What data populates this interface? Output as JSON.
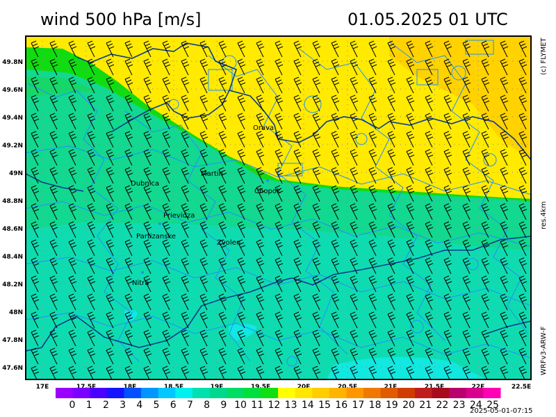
{
  "header": {
    "title": "wind 500 hPa [m/s]",
    "datetime": "01.05.2025   01 UTC"
  },
  "side_labels": {
    "copyright": "(c) FLYMET",
    "resolution": "res.4km",
    "model": "WRFv3-ARW-F"
  },
  "timestamp": "2025-05-01-07:15",
  "map": {
    "lat_ticks": [
      "49.8N",
      "49.6N",
      "49.4N",
      "49.2N",
      "49N",
      "48.8N",
      "48.6N",
      "48.4N",
      "48.2N",
      "48N",
      "47.8N",
      "47.6N"
    ],
    "lon_ticks": [
      "17E",
      "17.5E",
      "18E",
      "18.5E",
      "19E",
      "19.5E",
      "20E",
      "20.5E",
      "21E",
      "21.5E",
      "22E",
      "22.5E"
    ],
    "places": [
      {
        "name": "Orava"
      },
      {
        "name": "Martin"
      },
      {
        "name": "Dubnica"
      },
      {
        "name": "Chopok"
      },
      {
        "name": "Prievidza"
      },
      {
        "name": "Partizanske"
      },
      {
        "name": "Zvolen"
      },
      {
        "name": "Nitra"
      }
    ],
    "colors": {
      "yellow": "#ffea00",
      "orange": "#ffd200",
      "green": "#11dc11",
      "teal": "#12d890",
      "cyan": "#10e8e0",
      "border": "#1e90ff"
    }
  },
  "legend": {
    "labels": [
      "0",
      "1",
      "2",
      "3",
      "4",
      "5",
      "6",
      "7",
      "8",
      "9",
      "10",
      "11",
      "12",
      "13",
      "14",
      "15",
      "16",
      "17",
      "18",
      "19",
      "20",
      "21",
      "22",
      "23",
      "24",
      "25"
    ],
    "colors": [
      "#9b00ff",
      "#7a00ff",
      "#4b00ff",
      "#1414ff",
      "#0050ff",
      "#0096ff",
      "#00c8ff",
      "#00f0f0",
      "#00e0b0",
      "#00d890",
      "#00dc64",
      "#00e03c",
      "#10e010",
      "#ffff00",
      "#ffe600",
      "#ffcd00",
      "#ffb400",
      "#ff9600",
      "#f07800",
      "#e05a00",
      "#d03c00",
      "#c01e1e",
      "#a80a1e",
      "#b8006e",
      "#d8008c",
      "#ff00b4"
    ]
  }
}
